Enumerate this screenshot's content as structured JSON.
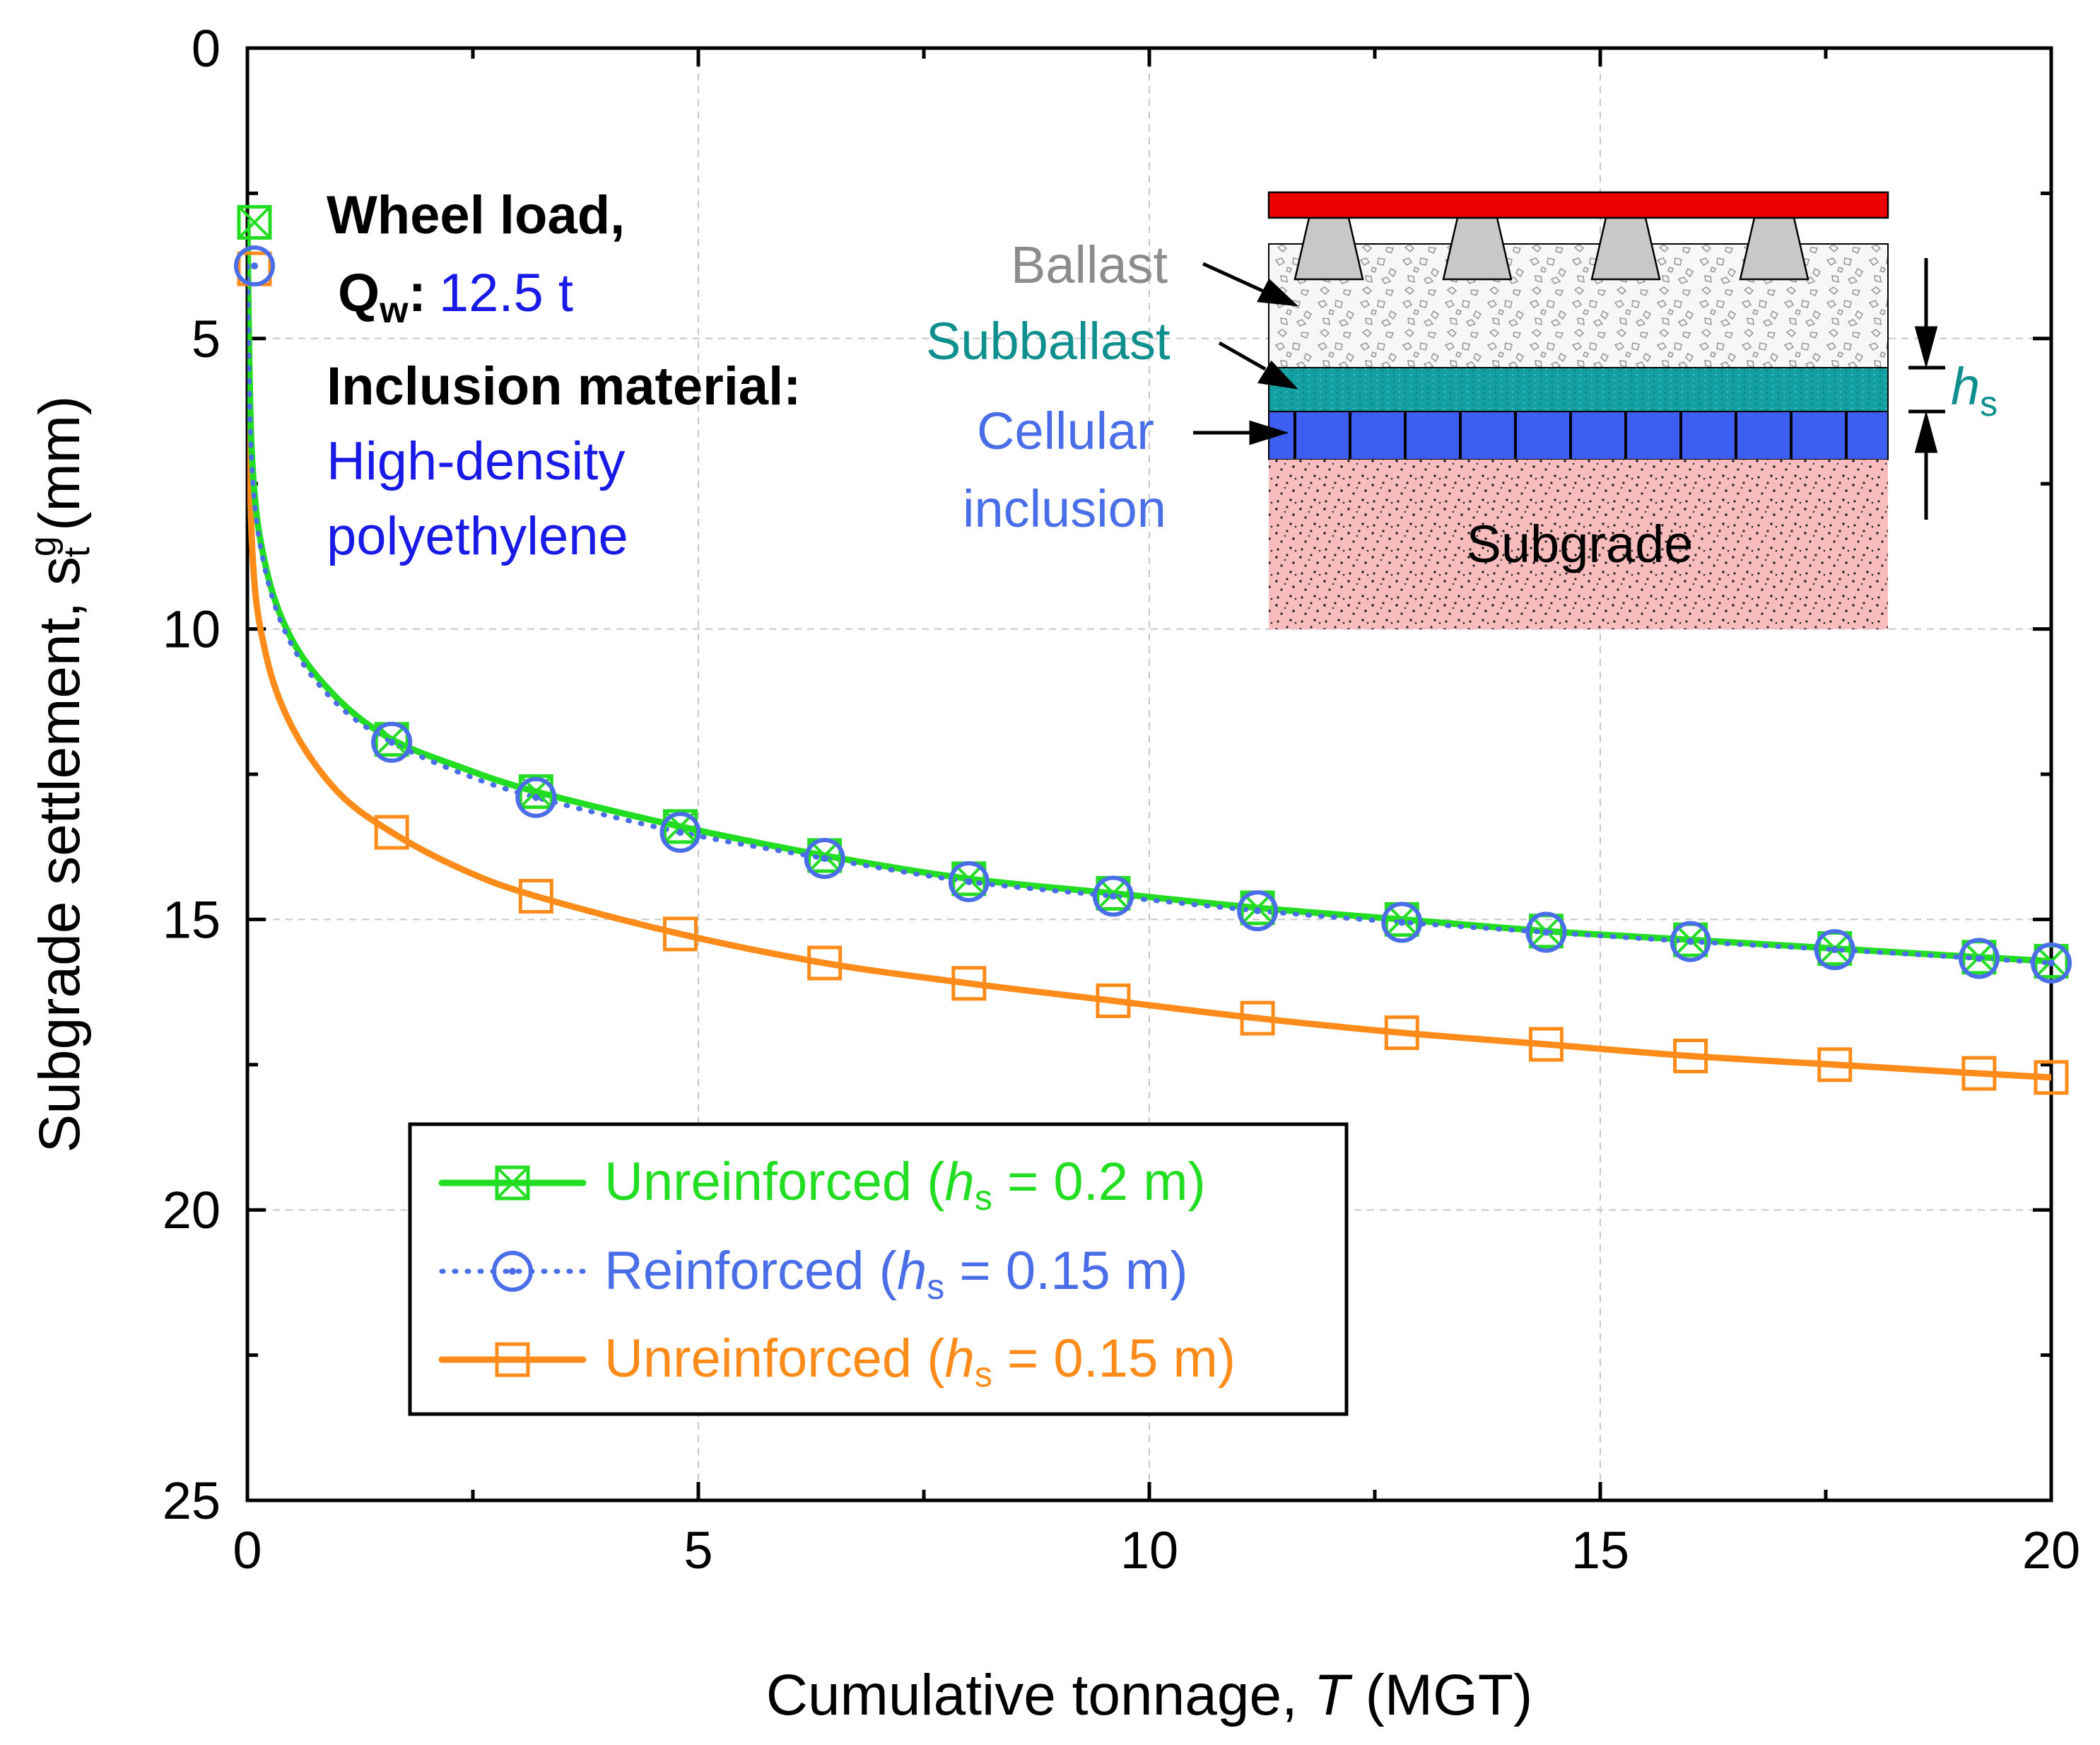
{
  "chart_data": {
    "type": "line",
    "xlabel": {
      "prefix": "Cumulative tonnage, ",
      "italic": "T",
      "suffix": " (MGT)"
    },
    "ylabel": {
      "prefix": "Subgrade settlement, ",
      "sym": "s",
      "sup": "g",
      "sub": "t",
      "suffix": " (mm)"
    },
    "xlim": [
      0,
      20
    ],
    "ylim": [
      0,
      25
    ],
    "y_inverted": true,
    "x_ticks": [
      "0",
      "5",
      "10",
      "15",
      "20"
    ],
    "y_ticks": [
      "0",
      "5",
      "10",
      "15",
      "20",
      "25"
    ],
    "grid": true,
    "series": [
      {
        "name": "Unreinforced (hs = 0.2 m)",
        "color": "#22dd22",
        "style": "solid",
        "marker": "square-x",
        "x": [
          0.0,
          0.05,
          0.2,
          0.5,
          1.0,
          1.6,
          2.4,
          3.2,
          4.8,
          6.4,
          8.0,
          9.6,
          11.2,
          12.8,
          14.4,
          16.0,
          17.6,
          19.2,
          20.0
        ],
        "y": [
          3.0,
          7.0,
          8.9,
          10.2,
          11.2,
          11.9,
          12.4,
          12.8,
          13.4,
          13.9,
          14.3,
          14.55,
          14.8,
          15.0,
          15.2,
          15.35,
          15.5,
          15.65,
          15.72
        ]
      },
      {
        "name": "Reinforced (hs = 0.15 m)",
        "color": "#4a6ee8",
        "style": "dotted",
        "marker": "circle-dot",
        "x": [
          0.0,
          0.05,
          0.2,
          0.5,
          1.0,
          1.6,
          2.4,
          3.2,
          4.8,
          6.4,
          8.0,
          9.6,
          11.2,
          12.8,
          14.4,
          16.0,
          17.6,
          19.2,
          20.0
        ],
        "y": [
          3.75,
          7.2,
          9.0,
          10.3,
          11.3,
          11.95,
          12.5,
          12.9,
          13.5,
          13.95,
          14.35,
          14.6,
          14.85,
          15.05,
          15.22,
          15.38,
          15.52,
          15.67,
          15.75
        ]
      },
      {
        "name": "Unreinforced (hs = 0.15 m)",
        "color": "#ff8c1a",
        "style": "solid",
        "marker": "square",
        "x": [
          0.0,
          0.05,
          0.2,
          0.5,
          1.0,
          1.6,
          2.4,
          3.2,
          4.8,
          6.4,
          8.0,
          9.6,
          11.2,
          12.8,
          14.4,
          16.0,
          17.6,
          19.2,
          20.0
        ],
        "y": [
          3.8,
          8.5,
          10.4,
          11.7,
          12.8,
          13.5,
          14.15,
          14.6,
          15.25,
          15.75,
          16.1,
          16.4,
          16.7,
          16.95,
          17.15,
          17.35,
          17.5,
          17.65,
          17.72
        ]
      }
    ],
    "marker_x": [
      1.6,
      3.2,
      4.8,
      6.4,
      8.0,
      9.6,
      11.2,
      12.8,
      14.4,
      16.0,
      17.6,
      19.2,
      20.0
    ],
    "legend": {
      "placement": "bottom-left",
      "entries": [
        {
          "pre": "Unreinforced (",
          "italic": "h",
          "sub": "s",
          "post": " = 0.2 m)",
          "color": "#22dd22"
        },
        {
          "pre": "Reinforced (",
          "italic": "h",
          "sub": "s",
          "post": " = 0.15 m)",
          "color": "#4a6ee8"
        },
        {
          "pre": "Unreinforced (",
          "italic": "h",
          "sub": "s",
          "post": " = 0.15 m)",
          "color": "#ff8c1a"
        }
      ]
    },
    "annotations": {
      "wheel_load_label": "Wheel load,",
      "q_symbol": "Q",
      "q_sub": "w",
      "q_colon": ":",
      "q_value": "12.5 t",
      "inclusion_label": "Inclusion material:",
      "material_line1": "High-density",
      "material_line2": "polyethylene"
    },
    "inset": {
      "ballast": "Ballast",
      "subballast": "Subballast",
      "cellular_1": "Cellular",
      "cellular_2": "inclusion",
      "subgrade": "Subgrade",
      "hs_symbol": "h",
      "hs_sub": "s"
    },
    "colors": {
      "rail": "#ee0000",
      "sleeper": "#c8c8c8",
      "ballast_label": "#8c8c8c",
      "subballast": "#14a0a0",
      "subballast_label": "#108f8f",
      "cellular": "#3d5ef0",
      "cellular_label": "#4a6ee8",
      "subgrade": "#f8bcbc",
      "material_text": "#1a1ae6"
    }
  }
}
